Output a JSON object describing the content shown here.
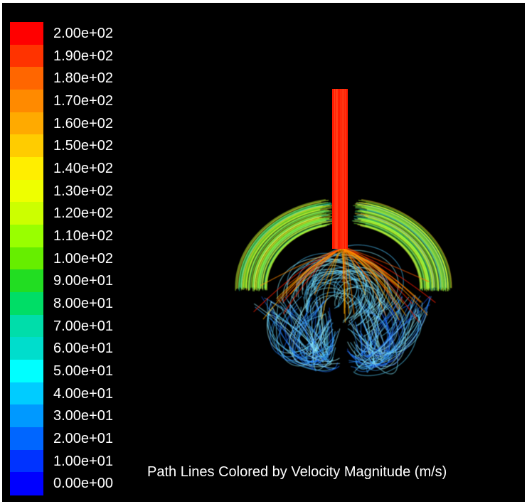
{
  "colorbar": {
    "labels": [
      "2.00e+02",
      "1.90e+02",
      "1.80e+02",
      "1.70e+02",
      "1.60e+02",
      "1.50e+02",
      "1.40e+02",
      "1.30e+02",
      "1.20e+02",
      "1.10e+02",
      "1.00e+02",
      "9.00e+01",
      "8.00e+01",
      "7.00e+01",
      "6.00e+01",
      "5.00e+01",
      "4.00e+01",
      "3.00e+01",
      "2.00e+01",
      "1.00e+01",
      "0.00e+00"
    ],
    "colors": [
      "#ff0000",
      "#ff3300",
      "#ff6600",
      "#ff8a00",
      "#ffaa00",
      "#ffcc00",
      "#ffee00",
      "#eeff00",
      "#ccff00",
      "#99ff00",
      "#66ee00",
      "#22dd22",
      "#00dd66",
      "#00ddaa",
      "#00ddcc",
      "#00ffff",
      "#00ccff",
      "#0099ff",
      "#0066ff",
      "#0033ff",
      "#0000ff"
    ]
  },
  "caption": "Path Lines Colored by Velocity Magnitude (m/s)",
  "background_color": "#000000"
}
